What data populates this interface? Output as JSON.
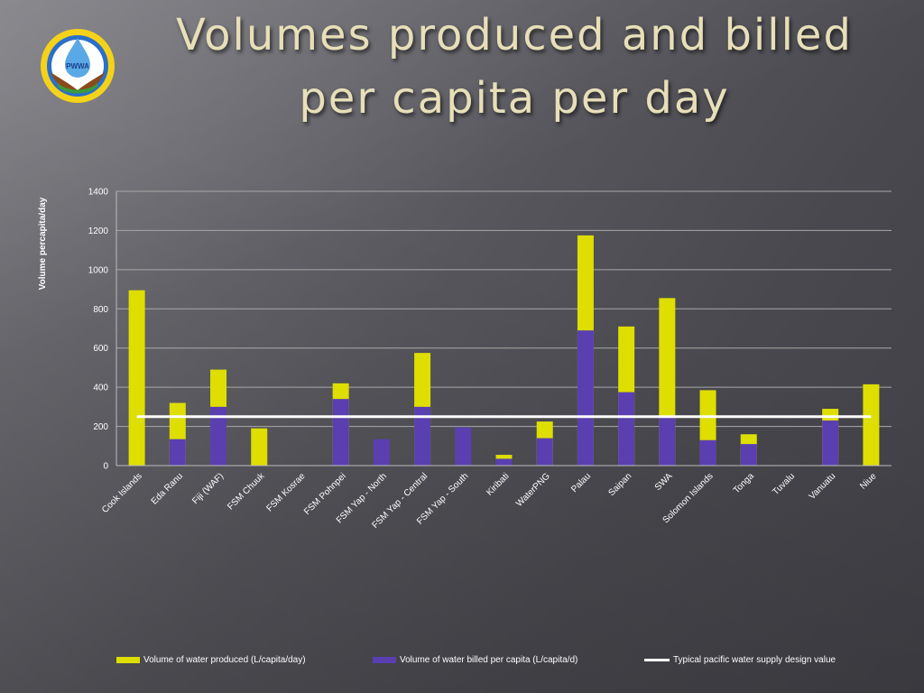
{
  "header": {
    "title_line1": "Volumes produced and billed",
    "title_line2": "per capita per day"
  },
  "logo": {
    "text": "PWWA",
    "icon": "water-drop-hands-logo-icon"
  },
  "colors": {
    "produced": "#dede00",
    "billed": "#5a3fb0",
    "design_line": "#ffffff",
    "title": "#e6dfb8"
  },
  "chart_data": {
    "type": "bar",
    "ylabel": "Volume percapita/day",
    "ylim": [
      0,
      1400
    ],
    "yticks": [
      0,
      200,
      400,
      600,
      800,
      1000,
      1200,
      1400
    ],
    "grid": true,
    "legend_position": "bottom",
    "categories": [
      "Cook Islands",
      "Eda Ranu",
      "Fiji (WAF)",
      "FSM Chuuk",
      "FSM Kosrae",
      "FSM Pohnpei",
      "FSM Yap - North",
      "FSM Yap - Central",
      "FSM Yap - South",
      "Kiribati",
      "WaterPNG",
      "Palau",
      "Saipan",
      "SWA",
      "Solomon Islands",
      "Tonga",
      "Tuvalu",
      "Vanuatu",
      "Niue"
    ],
    "series": [
      {
        "name": "Volume of water produced (L/capita/day)",
        "values": [
          895,
          320,
          490,
          190,
          0,
          420,
          0,
          575,
          0,
          55,
          225,
          1175,
          710,
          855,
          385,
          160,
          0,
          290,
          415
        ]
      },
      {
        "name": "Volume of water billed per capita (L/capita/d)",
        "values": [
          0,
          135,
          300,
          0,
          0,
          340,
          135,
          300,
          195,
          35,
          140,
          690,
          375,
          255,
          130,
          110,
          0,
          230,
          0
        ]
      },
      {
        "name": "Typical pacific water supply design value",
        "values": [
          250,
          250,
          250,
          250,
          250,
          250,
          250,
          250,
          250,
          250,
          250,
          250,
          250,
          250,
          250,
          250,
          250,
          250,
          250
        ]
      }
    ]
  }
}
